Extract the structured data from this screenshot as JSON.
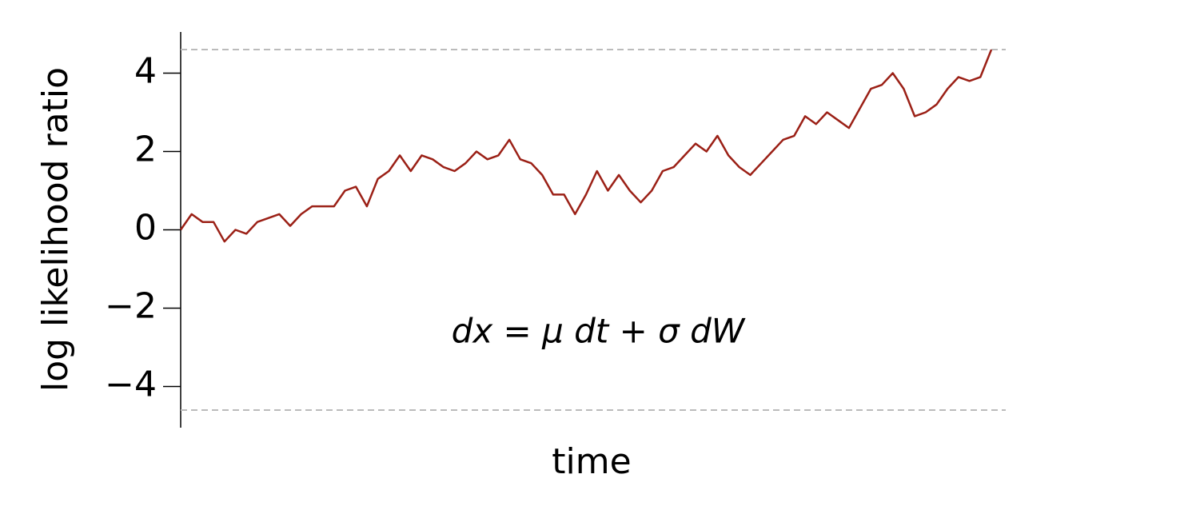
{
  "chart_data": {
    "type": "line",
    "ylabel": "log likelihood ratio",
    "xlabel": "time",
    "annotation": "dx = μ dt + σ dW",
    "ylim": [
      -5.05,
      5.05
    ],
    "yticks": [
      {
        "value": -4,
        "label": "−4"
      },
      {
        "value": -2,
        "label": "−2"
      },
      0,
      2,
      4
    ],
    "thresholds": [
      4.6,
      -4.6
    ],
    "color": "#9b2016",
    "values": [
      0,
      0.4,
      0.2,
      0.2,
      -0.3,
      0,
      -0.1,
      0.2,
      0.3,
      0.4,
      0.1,
      0.4,
      0.6,
      0.6,
      0.6,
      1.0,
      1.1,
      0.6,
      1.3,
      1.5,
      1.9,
      1.5,
      1.9,
      1.8,
      1.6,
      1.5,
      1.7,
      2.0,
      1.8,
      1.9,
      2.3,
      1.8,
      1.7,
      1.4,
      0.9,
      0.9,
      0.4,
      0.9,
      1.5,
      1.0,
      1.4,
      1.0,
      0.7,
      1.0,
      1.5,
      1.6,
      1.9,
      2.2,
      2.0,
      2.4,
      1.9,
      1.6,
      1.4,
      1.7,
      2.0,
      2.3,
      2.4,
      2.9,
      2.7,
      3.0,
      2.8,
      2.6,
      3.1,
      3.6,
      3.7,
      4.0,
      3.6,
      2.9,
      3.0,
      3.2,
      3.6,
      3.9,
      3.8,
      3.9,
      4.6
    ]
  }
}
